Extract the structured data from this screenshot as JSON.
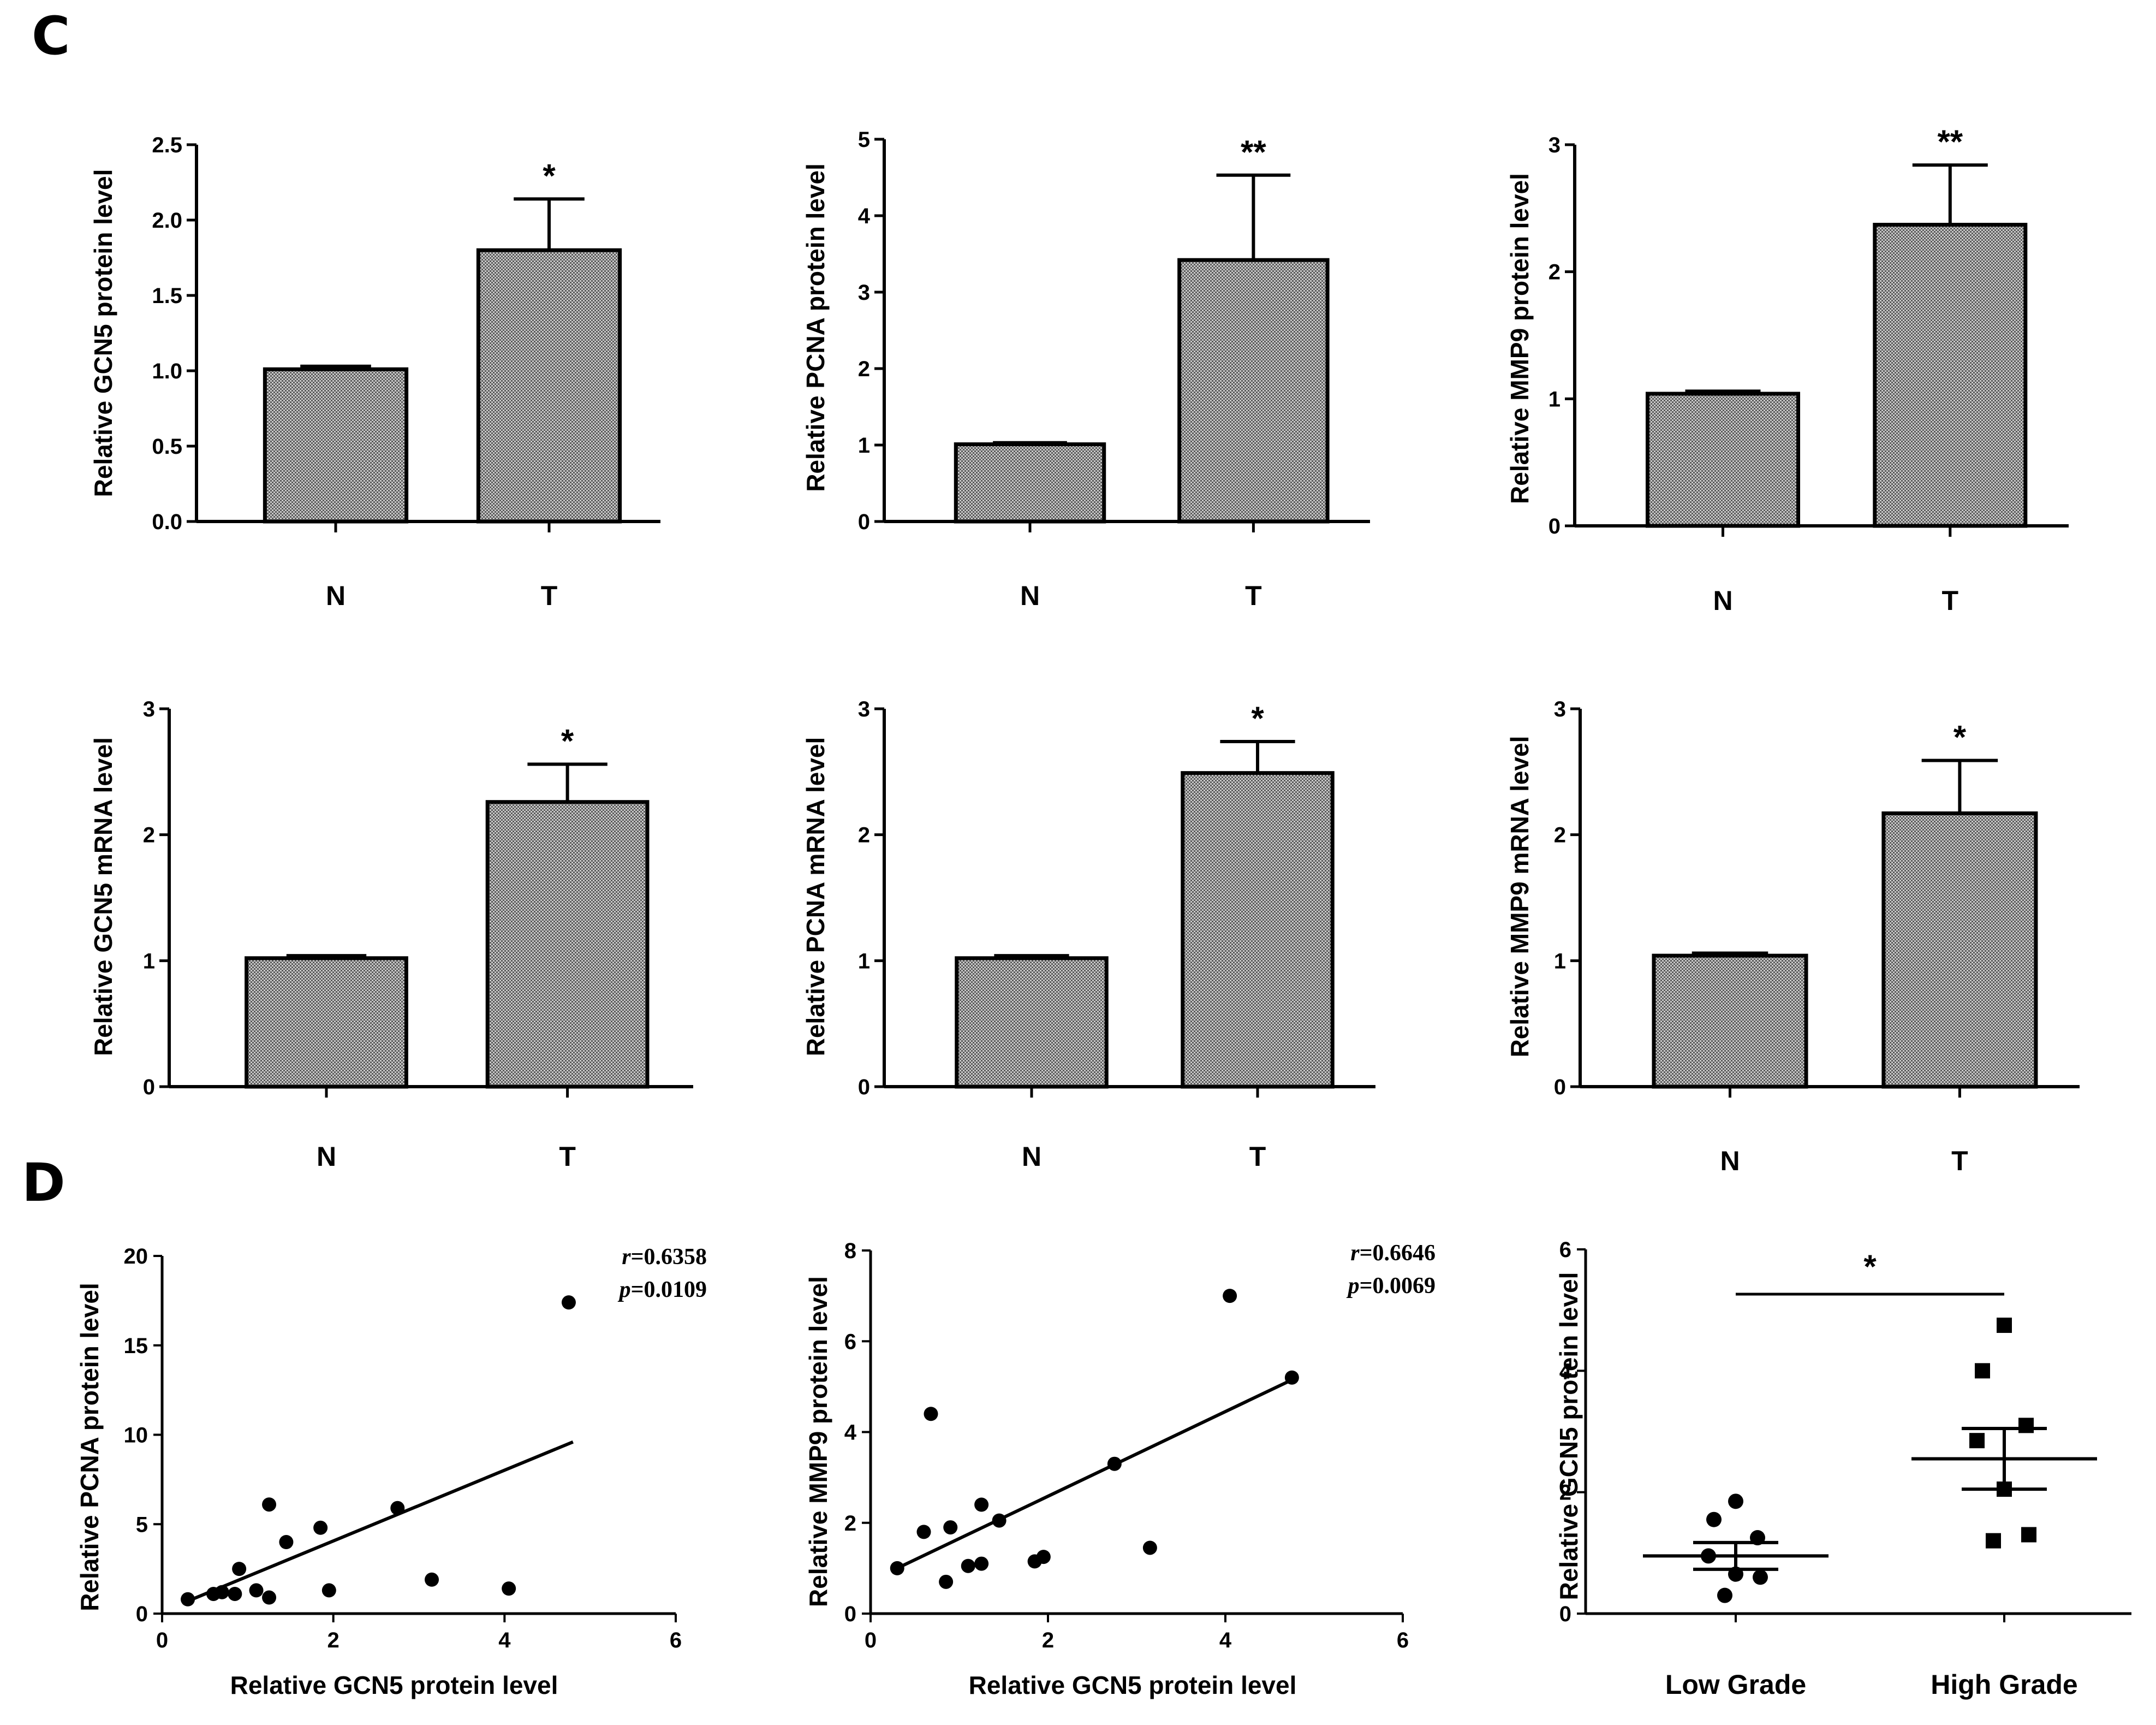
{
  "panel_labels": {
    "c": "C",
    "d": "D"
  },
  "chart_data": [
    {
      "type": "bar",
      "panel": "C",
      "categories": [
        "N",
        "T"
      ],
      "values": [
        1.01,
        1.8
      ],
      "errors": [
        0.02,
        0.34
      ],
      "significance": [
        "",
        "*"
      ],
      "ylabel": "Relative GCN5 protein level",
      "xlabel": "",
      "ylim": [
        0,
        2.5
      ],
      "yticks": [
        "0.0",
        "0.5",
        "1.0",
        "1.5",
        "2.0",
        "2.5"
      ]
    },
    {
      "type": "bar",
      "panel": "C",
      "categories": [
        "N",
        "T"
      ],
      "values": [
        1.01,
        3.42
      ],
      "errors": [
        0.02,
        1.11
      ],
      "significance": [
        "",
        "**"
      ],
      "ylabel": "Relative PCNA protein level",
      "xlabel": "",
      "ylim": [
        0,
        5
      ],
      "yticks": [
        "0",
        "1",
        "2",
        "3",
        "4",
        "5"
      ]
    },
    {
      "type": "bar",
      "panel": "C",
      "categories": [
        "N",
        "T"
      ],
      "values": [
        1.04,
        2.37
      ],
      "errors": [
        0.02,
        0.47
      ],
      "significance": [
        "",
        "**"
      ],
      "ylabel": "Relative MMP9 protein level",
      "xlabel": "",
      "ylim": [
        0,
        3
      ],
      "yticks": [
        "0",
        "1",
        "2",
        "3"
      ]
    },
    {
      "type": "bar",
      "panel": "C",
      "categories": [
        "N",
        "T"
      ],
      "values": [
        1.02,
        2.26
      ],
      "errors": [
        0.02,
        0.3
      ],
      "significance": [
        "",
        "*"
      ],
      "ylabel": "Relative GCN5 mRNA level",
      "xlabel": "",
      "ylim": [
        0,
        3
      ],
      "yticks": [
        "0",
        "1",
        "2",
        "3"
      ]
    },
    {
      "type": "bar",
      "panel": "C",
      "categories": [
        "N",
        "T"
      ],
      "values": [
        1.02,
        2.49
      ],
      "errors": [
        0.02,
        0.25
      ],
      "significance": [
        "",
        "*"
      ],
      "ylabel": "Relative PCNA mRNA level",
      "xlabel": "",
      "ylim": [
        0,
        3
      ],
      "yticks": [
        "0",
        "1",
        "2",
        "3"
      ]
    },
    {
      "type": "bar",
      "panel": "C",
      "categories": [
        "N",
        "T"
      ],
      "values": [
        1.04,
        2.17
      ],
      "errors": [
        0.02,
        0.42
      ],
      "significance": [
        "",
        "*"
      ],
      "ylabel": "Relative MMP9 mRNA level",
      "xlabel": "",
      "ylim": [
        0,
        3
      ],
      "yticks": [
        "0",
        "1",
        "2",
        "3"
      ]
    },
    {
      "type": "scatter",
      "panel": "D",
      "xlabel": "Relative  GCN5  protein level",
      "ylabel": "Relative PCNA protein level",
      "xlim": [
        0,
        6
      ],
      "ylim": [
        0,
        20
      ],
      "xticks": [
        "0",
        "2",
        "4",
        "6"
      ],
      "yticks": [
        "0",
        "5",
        "10",
        "15",
        "20"
      ],
      "points": [
        [
          0.3,
          0.8
        ],
        [
          0.6,
          1.1
        ],
        [
          0.7,
          1.2
        ],
        [
          0.85,
          1.1
        ],
        [
          0.9,
          2.5
        ],
        [
          1.1,
          1.3
        ],
        [
          1.25,
          0.9
        ],
        [
          1.25,
          6.1
        ],
        [
          1.45,
          4.0
        ],
        [
          1.85,
          4.8
        ],
        [
          1.95,
          1.3
        ],
        [
          2.75,
          5.9
        ],
        [
          3.15,
          1.9
        ],
        [
          4.05,
          1.4
        ],
        [
          4.75,
          17.4
        ]
      ],
      "fit_line": [
        [
          0.3,
          0.7
        ],
        [
          4.8,
          9.6
        ]
      ],
      "r_label": "r",
      "r_value": "=0.6358",
      "p_label": "p",
      "p_value": "=0.0109"
    },
    {
      "type": "scatter",
      "panel": "D",
      "xlabel": "Relative  GCN5  protein level",
      "ylabel": "Relative MMP9 protein level",
      "xlim": [
        0,
        6
      ],
      "ylim": [
        0,
        8
      ],
      "xticks": [
        "0",
        "2",
        "4",
        "6"
      ],
      "yticks": [
        "0",
        "2",
        "4",
        "6",
        "8"
      ],
      "points": [
        [
          0.3,
          1.0
        ],
        [
          0.6,
          1.8
        ],
        [
          0.68,
          4.4
        ],
        [
          0.85,
          0.7
        ],
        [
          0.9,
          1.9
        ],
        [
          1.1,
          1.05
        ],
        [
          1.25,
          2.4
        ],
        [
          1.25,
          1.1
        ],
        [
          1.45,
          2.05
        ],
        [
          1.85,
          1.15
        ],
        [
          1.95,
          1.25
        ],
        [
          2.75,
          3.3
        ],
        [
          3.15,
          1.45
        ],
        [
          4.05,
          7.0
        ],
        [
          4.75,
          5.2
        ]
      ],
      "fit_line": [
        [
          0.3,
          1.0
        ],
        [
          4.75,
          5.15
        ]
      ],
      "r_label": "r",
      "r_value": "=0.6646",
      "p_label": "p",
      "p_value": "=0.0069"
    },
    {
      "type": "scatter",
      "panel": "D",
      "categories": [
        "Low Grade",
        "High Grade"
      ],
      "ylabel": "Relative GCN5 protein level",
      "ylim": [
        0,
        6
      ],
      "yticks": [
        "0",
        "2",
        "4",
        "6"
      ],
      "groups": [
        {
          "name": "Low Grade",
          "marker": "circle",
          "values": [
            1.85,
            1.55,
            1.25,
            0.95,
            0.65,
            0.6,
            0.3
          ],
          "mean": 0.95,
          "sem": 0.22
        },
        {
          "name": "High Grade",
          "marker": "square",
          "values": [
            4.75,
            4.0,
            3.1,
            2.85,
            2.05,
            1.3,
            1.2
          ],
          "mean": 2.55,
          "sem": 0.5
        }
      ],
      "significance": "*"
    }
  ]
}
